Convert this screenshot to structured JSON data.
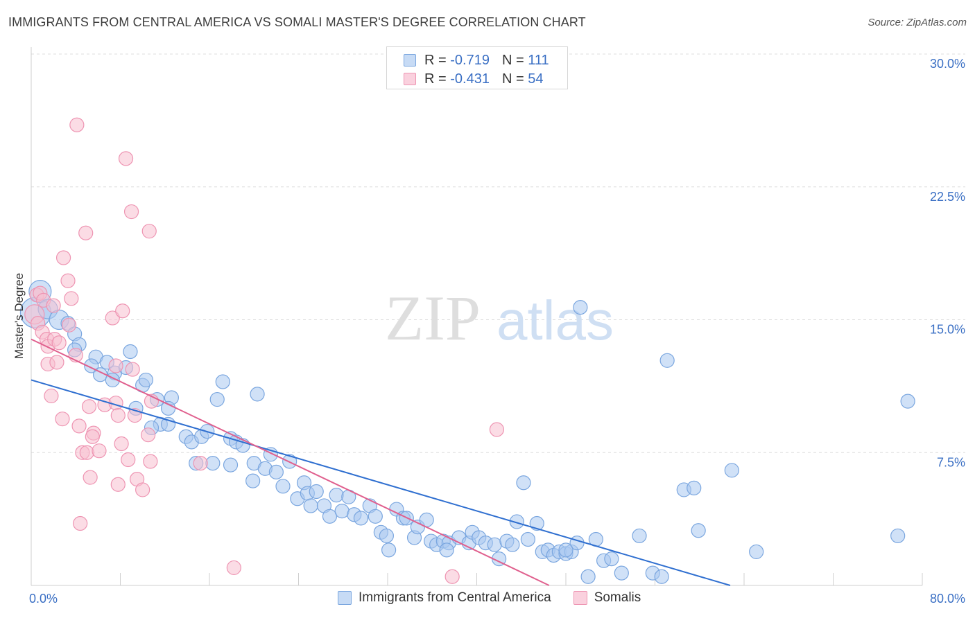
{
  "header": {
    "title": "IMMIGRANTS FROM CENTRAL AMERICA VS SOMALI MASTER'S DEGREE CORRELATION CHART",
    "source": "Source: ZipAtlas.com"
  },
  "legend_box": {
    "rows": [
      {
        "r_label": "R =",
        "r_value": "-0.719",
        "n_label": "N =",
        "n_value": "111"
      },
      {
        "r_label": "R =",
        "r_value": "-0.431",
        "n_label": "N =",
        "n_value": "54"
      }
    ]
  },
  "watermark": {
    "part1": "ZIP",
    "part2": "atlas"
  },
  "colors": {
    "blue_fill": "#a9c8f0",
    "blue_stroke": "#7aa6df",
    "blue_line": "#2f6fd0",
    "pink_fill": "#f7bfd0",
    "pink_stroke": "#ee94b2",
    "pink_line": "#e0608e",
    "grid": "#dcdcdc",
    "tick_label": "#3a6fc4"
  },
  "chart_data": {
    "type": "scatter",
    "title": "IMMIGRANTS FROM CENTRAL AMERICA VS SOMALI MASTER'S DEGREE CORRELATION CHART",
    "xlabel": "",
    "ylabel": "Master's Degree",
    "xlim": [
      0,
      80
    ],
    "ylim": [
      0,
      30
    ],
    "x_tick_labels": [
      "0.0%",
      "80.0%"
    ],
    "y_ticks": [
      7.5,
      15.0,
      22.5,
      30.0
    ],
    "y_tick_labels": [
      "7.5%",
      "15.0%",
      "22.5%",
      "30.0%"
    ],
    "grid": true,
    "legend_position": "bottom",
    "series": [
      {
        "name": "Immigrants from Central America",
        "color": "#a9c8f0",
        "trend": {
          "x": [
            0,
            66
          ],
          "y": [
            11.6,
            -0.6
          ]
        },
        "points": [
          [
            0.4,
            15.4,
            22
          ],
          [
            0.8,
            16.6,
            16
          ],
          [
            1.5,
            15.6,
            14
          ],
          [
            2.5,
            15.0,
            14
          ],
          [
            3.3,
            14.8,
            10
          ],
          [
            3.9,
            14.2,
            10
          ],
          [
            4.3,
            13.6,
            10
          ],
          [
            3.9,
            13.3,
            10
          ],
          [
            5.8,
            12.9,
            10
          ],
          [
            5.4,
            12.4,
            10
          ],
          [
            6.8,
            12.6,
            10
          ],
          [
            6.2,
            11.9,
            10
          ],
          [
            7.5,
            12.0,
            10
          ],
          [
            7.3,
            11.6,
            10
          ],
          [
            8.5,
            12.3,
            10
          ],
          [
            8.9,
            13.2,
            10
          ],
          [
            10.0,
            11.3,
            10
          ],
          [
            10.3,
            11.6,
            10
          ],
          [
            9.4,
            10.0,
            10
          ],
          [
            11.3,
            10.5,
            10
          ],
          [
            12.6,
            10.6,
            10
          ],
          [
            12.3,
            10.0,
            10
          ],
          [
            11.6,
            9.1,
            10
          ],
          [
            10.8,
            8.9,
            10
          ],
          [
            12.3,
            9.1,
            10
          ],
          [
            13.9,
            8.4,
            10
          ],
          [
            14.4,
            8.1,
            10
          ],
          [
            15.3,
            8.4,
            10
          ],
          [
            15.8,
            8.7,
            10
          ],
          [
            16.7,
            10.5,
            10
          ],
          [
            17.2,
            11.5,
            10
          ],
          [
            14.8,
            6.9,
            10
          ],
          [
            16.3,
            6.9,
            10
          ],
          [
            17.9,
            6.8,
            10
          ],
          [
            17.9,
            8.3,
            10
          ],
          [
            18.4,
            8.1,
            10
          ],
          [
            19.0,
            7.9,
            10
          ],
          [
            20.0,
            6.9,
            10
          ],
          [
            20.3,
            10.8,
            10
          ],
          [
            19.9,
            5.9,
            10
          ],
          [
            21.0,
            6.6,
            10
          ],
          [
            21.5,
            7.4,
            10
          ],
          [
            22.0,
            6.4,
            10
          ],
          [
            22.6,
            5.6,
            10
          ],
          [
            23.2,
            7.0,
            10
          ],
          [
            23.9,
            4.9,
            10
          ],
          [
            24.5,
            5.8,
            10
          ],
          [
            24.8,
            5.2,
            10
          ],
          [
            25.1,
            4.5,
            10
          ],
          [
            25.6,
            5.3,
            10
          ],
          [
            26.3,
            4.5,
            10
          ],
          [
            26.8,
            3.9,
            10
          ],
          [
            27.4,
            5.1,
            10
          ],
          [
            27.9,
            4.2,
            10
          ],
          [
            28.5,
            5.0,
            10
          ],
          [
            29.0,
            4.0,
            10
          ],
          [
            29.6,
            3.8,
            10
          ],
          [
            30.4,
            4.5,
            10
          ],
          [
            30.9,
            3.9,
            10
          ],
          [
            31.4,
            3.0,
            10
          ],
          [
            31.9,
            2.8,
            10
          ],
          [
            32.1,
            2.0,
            10
          ],
          [
            32.8,
            4.3,
            10
          ],
          [
            33.4,
            3.8,
            10
          ],
          [
            33.7,
            3.8,
            10
          ],
          [
            34.4,
            2.7,
            10
          ],
          [
            34.7,
            3.3,
            10
          ],
          [
            35.5,
            3.7,
            10
          ],
          [
            35.9,
            2.5,
            10
          ],
          [
            36.4,
            2.3,
            10
          ],
          [
            37.0,
            2.5,
            10
          ],
          [
            37.5,
            2.4,
            10
          ],
          [
            37.3,
            2.0,
            10
          ],
          [
            38.4,
            2.7,
            10
          ],
          [
            39.3,
            2.4,
            10
          ],
          [
            39.6,
            3.0,
            10
          ],
          [
            40.2,
            2.7,
            10
          ],
          [
            40.8,
            2.4,
            10
          ],
          [
            41.6,
            2.3,
            10
          ],
          [
            42.0,
            1.5,
            10
          ],
          [
            42.7,
            2.5,
            10
          ],
          [
            43.2,
            2.3,
            10
          ],
          [
            43.6,
            3.6,
            10
          ],
          [
            44.2,
            5.8,
            10
          ],
          [
            44.6,
            2.6,
            10
          ],
          [
            45.4,
            3.5,
            10
          ],
          [
            45.9,
            1.9,
            10
          ],
          [
            46.4,
            2.0,
            10
          ],
          [
            46.9,
            1.7,
            10
          ],
          [
            47.4,
            1.9,
            10
          ],
          [
            48.0,
            1.8,
            10
          ],
          [
            48.5,
            1.9,
            10
          ],
          [
            49.0,
            2.4,
            10
          ],
          [
            49.3,
            15.7,
            10
          ],
          [
            48.0,
            2.0,
            10
          ],
          [
            50.0,
            0.5,
            10
          ],
          [
            50.7,
            2.6,
            10
          ],
          [
            51.4,
            1.4,
            10
          ],
          [
            52.1,
            1.5,
            10
          ],
          [
            53.0,
            0.7,
            10
          ],
          [
            54.6,
            2.8,
            10
          ],
          [
            55.8,
            0.7,
            10
          ],
          [
            56.6,
            0.5,
            10
          ],
          [
            57.1,
            12.7,
            10
          ],
          [
            58.6,
            5.4,
            10
          ],
          [
            59.5,
            5.5,
            10
          ],
          [
            59.9,
            3.1,
            10
          ],
          [
            62.9,
            6.5,
            10
          ],
          [
            65.1,
            1.9,
            10
          ],
          [
            77.8,
            2.8,
            10
          ],
          [
            78.7,
            10.4,
            10
          ]
        ]
      },
      {
        "name": "Somalis",
        "color": "#f7bfd0",
        "trend": {
          "x": [
            0,
            46.5
          ],
          "y": [
            13.9,
            0
          ]
        },
        "points": [
          [
            0.3,
            15.3,
            14
          ],
          [
            0.5,
            16.4,
            10
          ],
          [
            0.6,
            14.8,
            10
          ],
          [
            0.8,
            16.5,
            10
          ],
          [
            1.1,
            16.1,
            10
          ],
          [
            1.0,
            14.3,
            10
          ],
          [
            1.4,
            13.9,
            10
          ],
          [
            1.5,
            13.5,
            10
          ],
          [
            1.5,
            12.5,
            10
          ],
          [
            1.8,
            10.7,
            10
          ],
          [
            2.0,
            15.8,
            10
          ],
          [
            2.1,
            13.9,
            10
          ],
          [
            2.5,
            13.7,
            10
          ],
          [
            2.3,
            12.6,
            10
          ],
          [
            2.8,
            9.4,
            10
          ],
          [
            2.9,
            18.5,
            10
          ],
          [
            3.3,
            17.2,
            10
          ],
          [
            3.4,
            14.7,
            10
          ],
          [
            3.6,
            16.2,
            10
          ],
          [
            4.0,
            13.0,
            10
          ],
          [
            4.1,
            26.0,
            10
          ],
          [
            4.3,
            9.0,
            10
          ],
          [
            4.4,
            3.5,
            10
          ],
          [
            4.6,
            7.5,
            10
          ],
          [
            4.9,
            19.9,
            10
          ],
          [
            5.0,
            7.5,
            10
          ],
          [
            5.2,
            10.1,
            10
          ],
          [
            5.3,
            6.1,
            10
          ],
          [
            5.6,
            8.6,
            10
          ],
          [
            5.5,
            8.4,
            10
          ],
          [
            6.1,
            7.6,
            10
          ],
          [
            6.6,
            10.2,
            10
          ],
          [
            7.3,
            15.1,
            10
          ],
          [
            7.6,
            12.4,
            10
          ],
          [
            7.6,
            10.3,
            10
          ],
          [
            7.8,
            9.6,
            10
          ],
          [
            7.8,
            5.7,
            10
          ],
          [
            8.1,
            8.0,
            10
          ],
          [
            8.2,
            15.5,
            10
          ],
          [
            8.5,
            24.1,
            10
          ],
          [
            8.7,
            7.1,
            10
          ],
          [
            9.0,
            21.1,
            10
          ],
          [
            9.1,
            12.2,
            10
          ],
          [
            9.3,
            9.6,
            10
          ],
          [
            9.5,
            6.0,
            10
          ],
          [
            10.0,
            5.4,
            10
          ],
          [
            10.6,
            20.0,
            10
          ],
          [
            10.5,
            8.5,
            10
          ],
          [
            10.7,
            7.0,
            10
          ],
          [
            10.8,
            10.4,
            10
          ],
          [
            15.2,
            6.9,
            10
          ],
          [
            18.2,
            1.0,
            10
          ],
          [
            37.8,
            0.5,
            10
          ],
          [
            41.8,
            8.8,
            10
          ]
        ]
      }
    ]
  },
  "bottom_legend": {
    "items": [
      {
        "label": "Immigrants from Central America"
      },
      {
        "label": "Somalis"
      }
    ]
  }
}
